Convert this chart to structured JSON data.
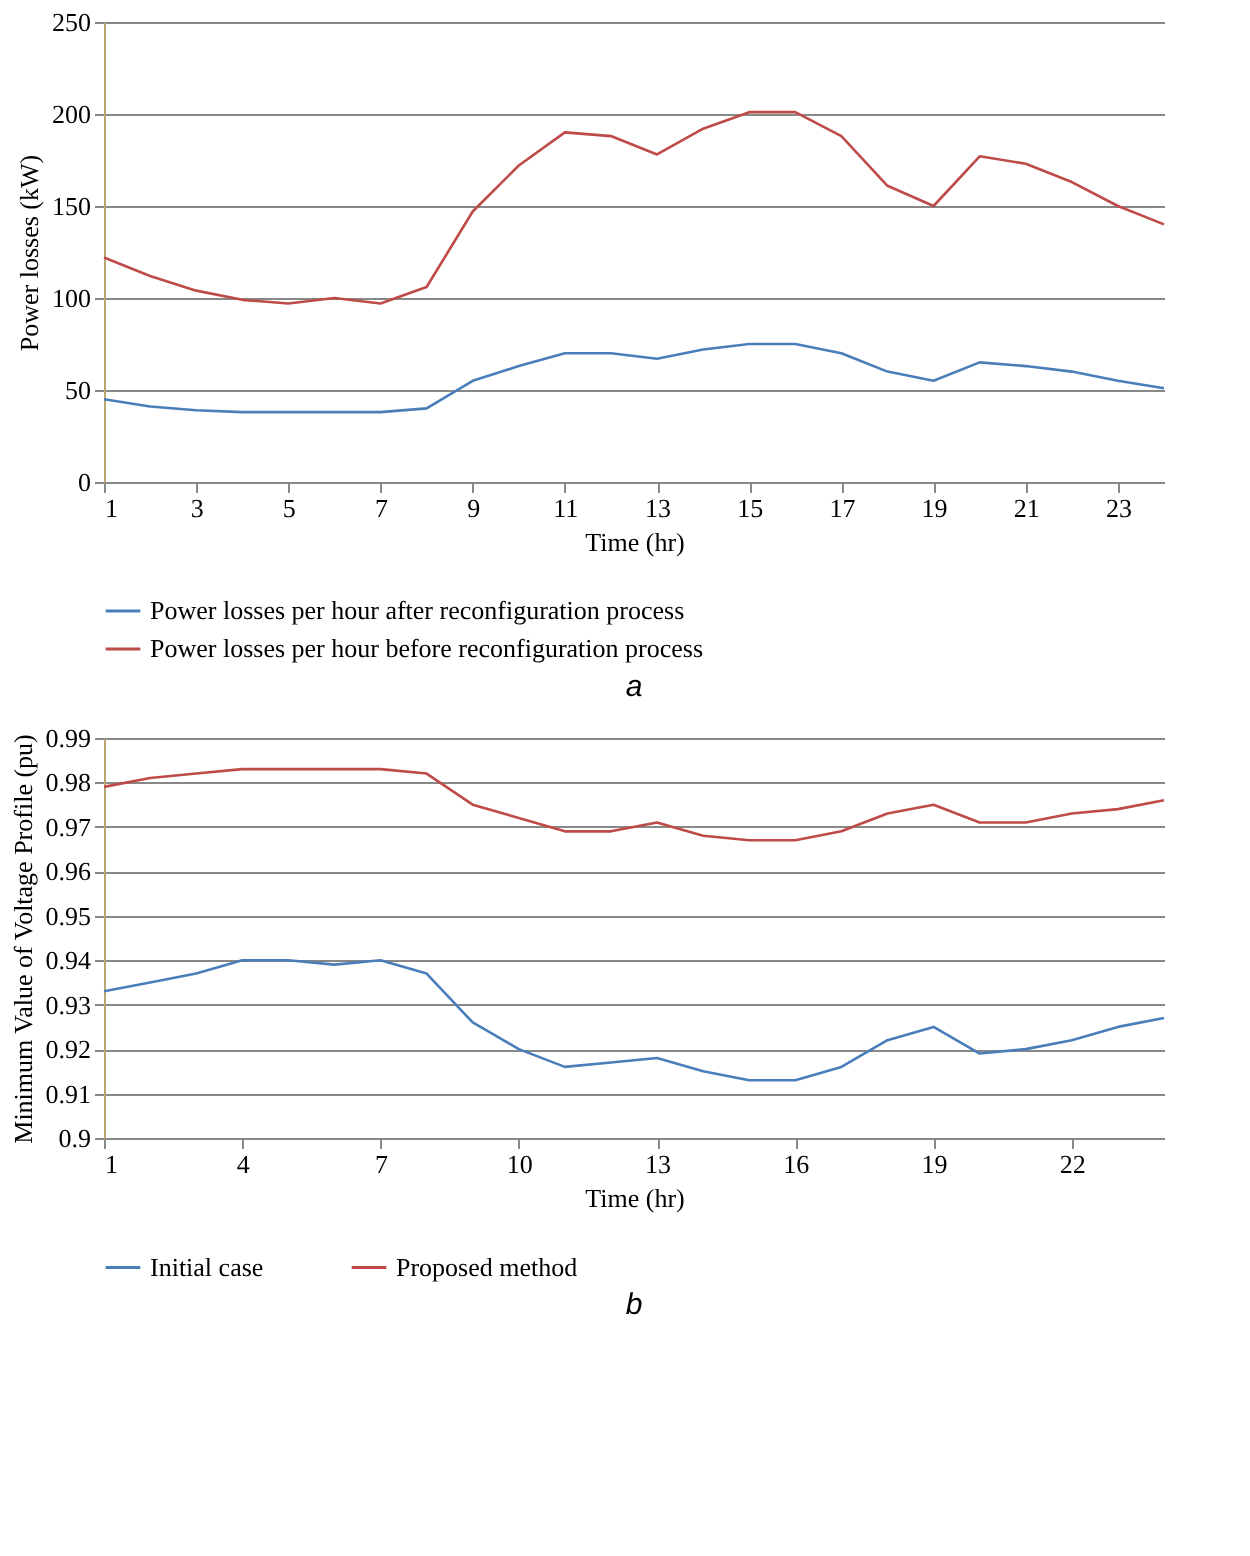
{
  "chart_data": [
    {
      "type": "line",
      "xlabel": "Time  (hr)",
      "ylabel": "Power losses (kW)",
      "x": [
        1,
        2,
        3,
        4,
        5,
        6,
        7,
        8,
        9,
        10,
        11,
        12,
        13,
        14,
        15,
        16,
        17,
        18,
        19,
        20,
        21,
        22,
        23,
        24
      ],
      "xlim": [
        1,
        24
      ],
      "xticks": [
        1,
        3,
        5,
        7,
        9,
        11,
        13,
        15,
        17,
        19,
        21,
        23
      ],
      "ylim": [
        0,
        250
      ],
      "yticks": [
        0,
        50,
        100,
        150,
        200,
        250
      ],
      "grid": "y",
      "legend": "bottom",
      "annotations": [
        "a"
      ],
      "series": [
        {
          "name": "Power losses per hour after reconfiguration process",
          "color": "#4a7ebb",
          "values": [
            45,
            41,
            39,
            38,
            38,
            38,
            38,
            40,
            55,
            63,
            70,
            70,
            67,
            72,
            75,
            75,
            70,
            60,
            55,
            65,
            63,
            60,
            55,
            51
          ]
        },
        {
          "name": "Power losses per hour before reconfiguration process",
          "color": "#be4b48",
          "values": [
            122,
            112,
            104,
            99,
            97,
            100,
            97,
            106,
            147,
            172,
            190,
            188,
            178,
            192,
            201,
            201,
            188,
            161,
            150,
            177,
            173,
            163,
            150,
            140
          ]
        }
      ]
    },
    {
      "type": "line",
      "xlabel": "Time  (hr)",
      "ylabel": "Minimum  Value  of Voltage  Profile (pu)",
      "x": [
        1,
        2,
        3,
        4,
        5,
        6,
        7,
        8,
        9,
        10,
        11,
        12,
        13,
        14,
        15,
        16,
        17,
        18,
        19,
        20,
        21,
        22,
        23,
        24
      ],
      "xlim": [
        1,
        24
      ],
      "xticks": [
        1,
        4,
        7,
        10,
        13,
        16,
        19,
        22
      ],
      "ylim": [
        0.9,
        0.99
      ],
      "yticks": [
        0.9,
        0.91,
        0.92,
        0.93,
        0.94,
        0.95,
        0.96,
        0.97,
        0.98,
        0.99
      ],
      "grid": "y",
      "legend": "bottom",
      "annotations": [
        "b"
      ],
      "series": [
        {
          "name": "Initial case",
          "color": "#4a7ebb",
          "values": [
            0.933,
            0.935,
            0.937,
            0.94,
            0.94,
            0.939,
            0.94,
            0.937,
            0.926,
            0.92,
            0.916,
            0.917,
            0.918,
            0.915,
            0.913,
            0.913,
            0.916,
            0.922,
            0.925,
            0.919,
            0.92,
            0.922,
            0.925,
            0.927
          ]
        },
        {
          "name": "Proposed method",
          "color": "#be4b48",
          "values": [
            0.979,
            0.981,
            0.982,
            0.983,
            0.983,
            0.983,
            0.983,
            0.982,
            0.975,
            0.972,
            0.969,
            0.969,
            0.971,
            0.968,
            0.967,
            0.967,
            0.969,
            0.973,
            0.975,
            0.971,
            0.971,
            0.973,
            0.974,
            0.976
          ]
        }
      ]
    }
  ]
}
